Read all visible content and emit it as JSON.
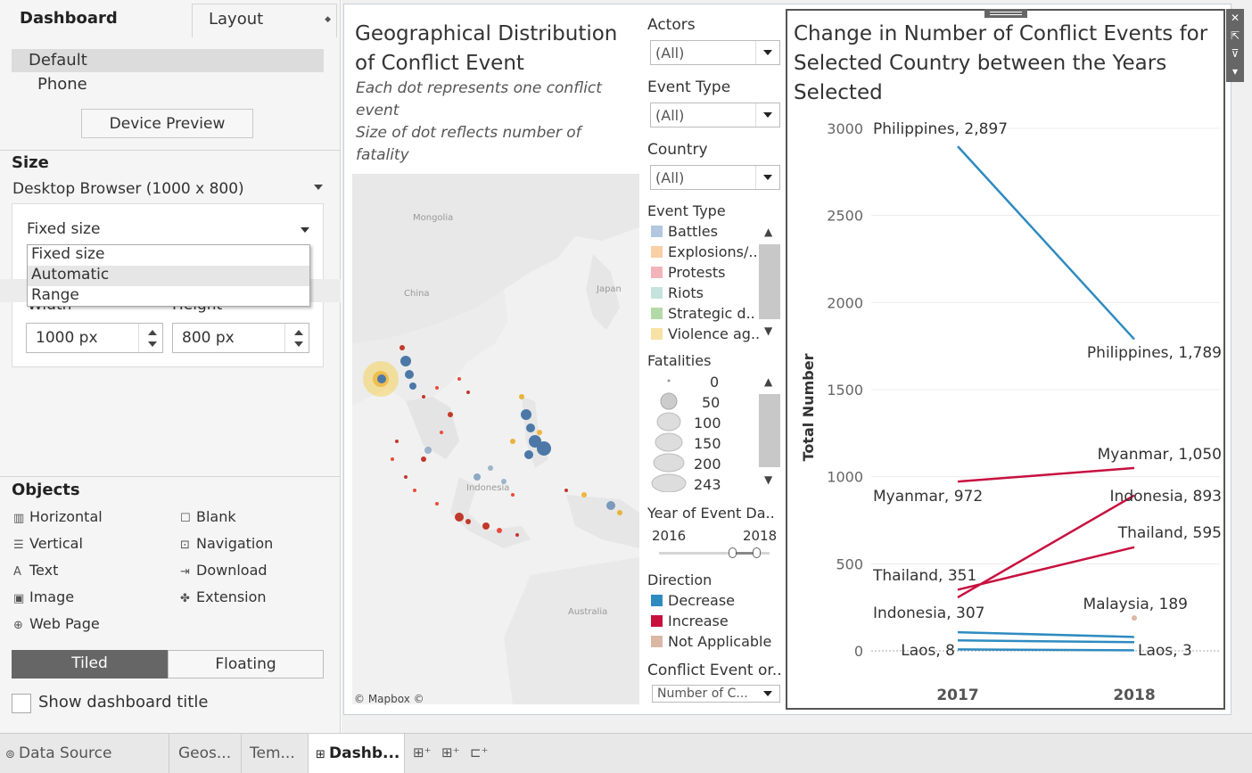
{
  "left_panel": {
    "tabs": {
      "dashboard": "Dashboard",
      "layout": "Layout"
    },
    "devices": {
      "default": "Default",
      "phone": "Phone"
    },
    "device_preview": "Device Preview",
    "size": {
      "title": "Size",
      "value": "Desktop Browser (1000 x 800)",
      "mode_selected": "Fixed size",
      "options": [
        "Fixed size",
        "Automatic",
        "Range"
      ],
      "width_label": "Width",
      "height_label": "Height",
      "width_value": "1000 px",
      "height_value": "800 px"
    },
    "objects": {
      "title": "Objects",
      "items": [
        {
          "label": "Horizontal",
          "icon": "horizontal-icon"
        },
        {
          "label": "Blank",
          "icon": "blank-icon"
        },
        {
          "label": "Vertical",
          "icon": "vertical-icon"
        },
        {
          "label": "Navigation",
          "icon": "navigation-icon"
        },
        {
          "label": "Text",
          "icon": "text-icon"
        },
        {
          "label": "Download",
          "icon": "download-icon"
        },
        {
          "label": "Image",
          "icon": "image-icon"
        },
        {
          "label": "Extension",
          "icon": "extension-icon"
        },
        {
          "label": "Web Page",
          "icon": "globe-icon"
        }
      ]
    },
    "layout_mode": {
      "tiled": "Tiled",
      "floating": "Floating"
    },
    "show_title": "Show dashboard title"
  },
  "bottom_tabs": [
    {
      "label": "Data Source",
      "icon": "database-icon"
    },
    {
      "label": "Geos...",
      "icon": ""
    },
    {
      "label": "Tem...",
      "icon": ""
    },
    {
      "label": "Dashb...",
      "icon": "dashboard-icon",
      "active": true
    }
  ],
  "map": {
    "title": "Geographical Distribution of Conflict Event",
    "subtitle1": "Each dot represents one conflict event",
    "subtitle2": "Size of dot reflects number of fatality",
    "labels": {
      "mongolia": "Mongolia",
      "china": "China",
      "japan": "Japan",
      "indonesia": "Indonesia",
      "australia": "Australia"
    },
    "attribution": "© Mapbox ©"
  },
  "filters": {
    "actors": {
      "label": "Actors",
      "value": "(All)"
    },
    "event_type": {
      "label": "Event Type",
      "value": "(All)"
    },
    "country": {
      "label": "Country",
      "value": "(All)"
    },
    "event_type_legend": {
      "label": "Event Type",
      "items": [
        {
          "label": "Battles",
          "color": "#b3c7e0"
        },
        {
          "label": "Explosions/..",
          "color": "#f9cfa6"
        },
        {
          "label": "Protests",
          "color": "#f2b4b8"
        },
        {
          "label": "Riots",
          "color": "#c5e3de"
        },
        {
          "label": "Strategic d..",
          "color": "#b4d9a8"
        },
        {
          "label": "Violence ag..",
          "color": "#f7e1a4"
        }
      ]
    },
    "fatalities": {
      "label": "Fatalities",
      "items": [
        "0",
        "50",
        "100",
        "150",
        "200",
        "243"
      ]
    },
    "year": {
      "label": "Year of Event Da..",
      "min": "2016",
      "max": "2018"
    },
    "direction": {
      "label": "Direction",
      "items": [
        {
          "label": "Decrease",
          "color": "#2e8bc0"
        },
        {
          "label": "Increase",
          "color": "#c8103f"
        },
        {
          "label": "Not Applicable",
          "color": "#dbb7a6"
        }
      ]
    },
    "conflict_event": {
      "label": "Conflict Event or..",
      "value": "Number of C..."
    }
  },
  "chart": {
    "title": "Change in Number of Conflict Events for Selected Country between the Years Selected"
  },
  "chart_data": {
    "type": "line",
    "title": "Change in Number of Conflict Events for Selected Country between the Years Selected",
    "xlabel": "",
    "ylabel": "Total Number",
    "categories": [
      "2017",
      "2018"
    ],
    "ylim": [
      0,
      3000
    ],
    "yticks": [
      0,
      500,
      1000,
      1500,
      2000,
      2500,
      3000
    ],
    "grid": true,
    "series": [
      {
        "name": "Philippines",
        "values": [
          2897,
          1789
        ],
        "direction": "Decrease",
        "color": "#2e8bc0",
        "label_start": "Philippines, 2,897",
        "label_end": "Philippines, 1,789"
      },
      {
        "name": "Myanmar",
        "values": [
          972,
          1050
        ],
        "direction": "Increase",
        "color": "#c8103f",
        "label_start": "Myanmar, 972",
        "label_end": "Myanmar, 1,050"
      },
      {
        "name": "Indonesia",
        "values": [
          307,
          893
        ],
        "direction": "Increase",
        "color": "#c8103f",
        "label_start": "Indonesia, 307",
        "label_end": "Indonesia, 893"
      },
      {
        "name": "Thailand",
        "values": [
          351,
          595
        ],
        "direction": "Increase",
        "color": "#c8103f",
        "label_start": "Thailand, 351",
        "label_end": "Thailand, 595"
      },
      {
        "name": "",
        "values": [
          107,
          80
        ],
        "direction": "Decrease",
        "color": "#2e8bc0",
        "label_start": "",
        "label_end": ""
      },
      {
        "name": "",
        "values": [
          60,
          50
        ],
        "direction": "Decrease",
        "color": "#2e8bc0",
        "label_start": "",
        "label_end": ""
      },
      {
        "name": "Laos",
        "values": [
          8,
          3
        ],
        "direction": "Decrease",
        "color": "#2e8bc0",
        "label_start": "Laos, 8",
        "label_end": "Laos, 3"
      },
      {
        "name": "Malaysia",
        "values": [
          null,
          189
        ],
        "direction": "Not Applicable",
        "color": "#dbb7a6",
        "label_start": "",
        "label_end": "Malaysia, 189"
      }
    ]
  }
}
